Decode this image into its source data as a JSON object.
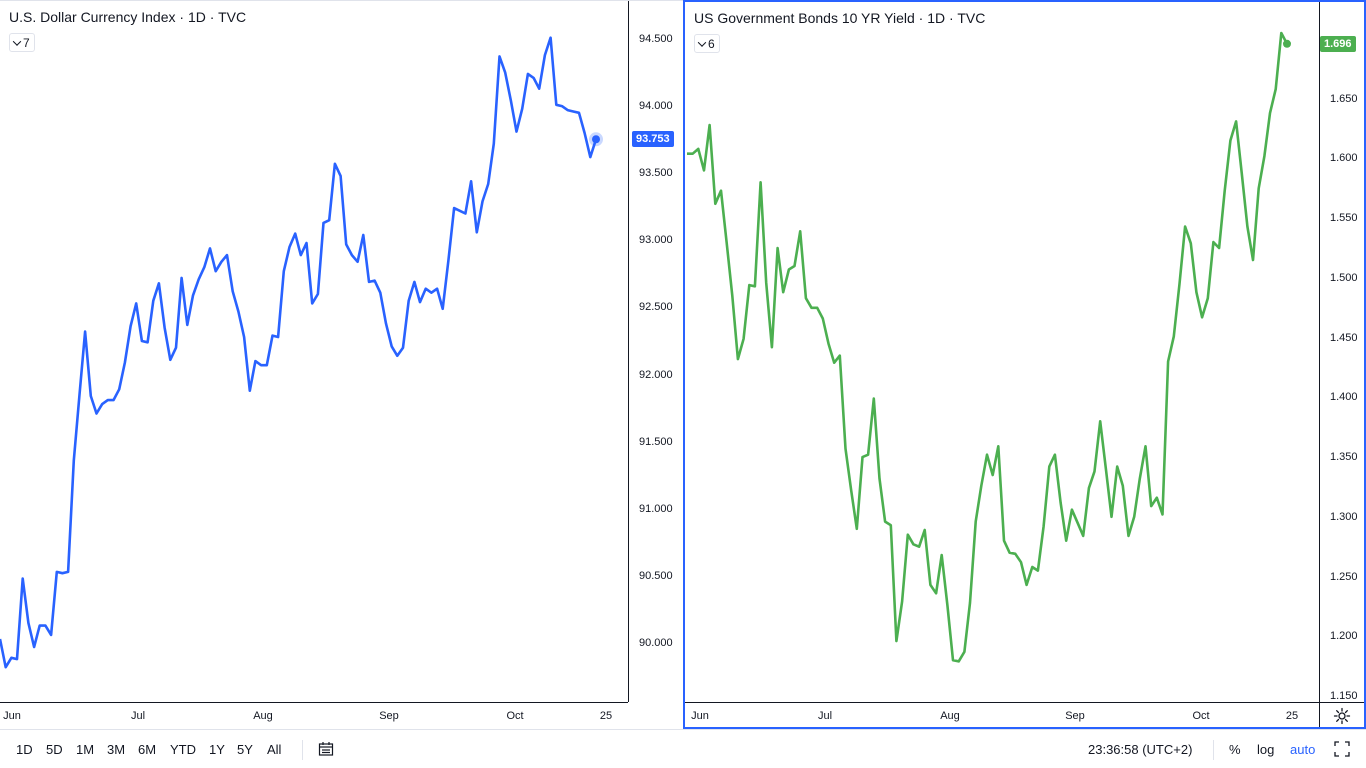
{
  "colors": {
    "dxy_line": "#2962ff",
    "yield_line": "#4caf50",
    "active_border": "#2962ff",
    "axis_text": "#131722"
  },
  "left_pane": {
    "legend": {
      "name": "U.S. Dollar Currency Index",
      "interval": "1D",
      "source": "TVC"
    },
    "collapse_count": "7",
    "last_value": "93.753",
    "x_ticks": [
      "Jun",
      "Jul",
      "Aug",
      "Sep",
      "Oct",
      "25"
    ],
    "y_ticks": [
      "94.500",
      "94.000",
      "93.500",
      "93.000",
      "92.500",
      "92.000",
      "91.500",
      "91.000",
      "90.500",
      "90.000"
    ]
  },
  "right_pane": {
    "legend": {
      "name": "US Government Bonds 10 YR Yield",
      "interval": "1D",
      "source": "TVC"
    },
    "collapse_count": "6",
    "last_value": "1.696",
    "x_ticks": [
      "Jun",
      "Jul",
      "Aug",
      "Sep",
      "Oct",
      "25"
    ],
    "y_ticks": [
      "1.650",
      "1.600",
      "1.550",
      "1.500",
      "1.450",
      "1.400",
      "1.350",
      "1.300",
      "1.250",
      "1.200",
      "1.150"
    ],
    "settings_icon": "gear-icon"
  },
  "bottom_bar": {
    "ranges": [
      "1D",
      "5D",
      "1M",
      "3M",
      "6M",
      "YTD",
      "1Y",
      "5Y",
      "All"
    ],
    "compare_icon": "compare-date-range-icon",
    "time": "23:36:58 (UTC+2)",
    "percent": "%",
    "log": "log",
    "auto": "auto",
    "fullscreen_icon": "fullscreen-icon"
  },
  "chart_data": [
    {
      "type": "line",
      "title": "U.S. Dollar Currency Index · 1D · TVC",
      "series": [
        {
          "name": "U.S. Dollar Currency Index",
          "values": [
            90.03,
            89.82,
            89.89,
            89.88,
            90.48,
            90.15,
            89.97,
            90.13,
            90.13,
            90.06,
            90.53,
            90.52,
            90.53,
            91.36,
            91.85,
            92.32,
            91.84,
            91.71,
            91.78,
            91.81,
            91.81,
            91.89,
            92.09,
            92.36,
            92.53,
            92.25,
            92.24,
            92.55,
            92.68,
            92.35,
            92.11,
            92.2,
            92.72,
            92.37,
            92.59,
            92.71,
            92.8,
            92.94,
            92.77,
            92.84,
            92.89,
            92.62,
            92.47,
            92.28,
            91.88,
            92.1,
            92.07,
            92.07,
            92.29,
            92.28,
            92.77,
            92.95,
            93.05,
            92.89,
            92.98,
            92.53,
            92.6,
            93.13,
            93.15,
            93.57,
            93.48,
            92.97,
            92.89,
            92.84,
            93.04,
            92.69,
            92.7,
            92.61,
            92.38,
            92.21,
            92.14,
            92.2,
            92.55,
            92.69,
            92.54,
            92.64,
            92.61,
            92.64,
            92.49,
            92.85,
            93.24,
            93.22,
            93.2,
            93.44,
            93.06,
            93.29,
            93.42,
            93.72,
            94.37,
            94.25,
            94.04,
            93.81,
            93.98,
            94.24,
            94.21,
            94.13,
            94.38,
            94.51,
            94.01,
            94.0,
            93.97,
            93.96,
            93.95,
            93.8,
            93.62,
            93.753
          ]
        }
      ],
      "ylim": [
        89.75,
        94.75
      ],
      "xlabel": "",
      "ylabel": "",
      "grid": false
    },
    {
      "type": "line",
      "title": "US Government Bonds 10 YR Yield · 1D · TVC",
      "series": [
        {
          "name": "US Government Bonds 10 YR Yield",
          "values": [
            1.604,
            1.604,
            1.608,
            1.59,
            1.628,
            1.562,
            1.573,
            1.53,
            1.485,
            1.432,
            1.449,
            1.494,
            1.493,
            1.58,
            1.496,
            1.442,
            1.525,
            1.488,
            1.507,
            1.51,
            1.539,
            1.483,
            1.475,
            1.475,
            1.466,
            1.445,
            1.429,
            1.435,
            1.357,
            1.322,
            1.29,
            1.35,
            1.352,
            1.399,
            1.332,
            1.296,
            1.293,
            1.196,
            1.229,
            1.285,
            1.277,
            1.275,
            1.289,
            1.243,
            1.236,
            1.268,
            1.226,
            1.18,
            1.179,
            1.187,
            1.228,
            1.296,
            1.326,
            1.352,
            1.335,
            1.359,
            1.28,
            1.27,
            1.269,
            1.262,
            1.243,
            1.258,
            1.255,
            1.292,
            1.342,
            1.352,
            1.312,
            1.28,
            1.306,
            1.295,
            1.284,
            1.324,
            1.338,
            1.38,
            1.34,
            1.3,
            1.342,
            1.326,
            1.284,
            1.3,
            1.332,
            1.359,
            1.309,
            1.316,
            1.302,
            1.43,
            1.451,
            1.495,
            1.543,
            1.529,
            1.488,
            1.467,
            1.483,
            1.53,
            1.525,
            1.573,
            1.615,
            1.631,
            1.588,
            1.543,
            1.515,
            1.575,
            1.602,
            1.638,
            1.658,
            1.705,
            1.696
          ]
        }
      ],
      "ylim": [
        1.145,
        1.72
      ],
      "xlabel": "",
      "ylabel": "",
      "grid": false
    }
  ]
}
